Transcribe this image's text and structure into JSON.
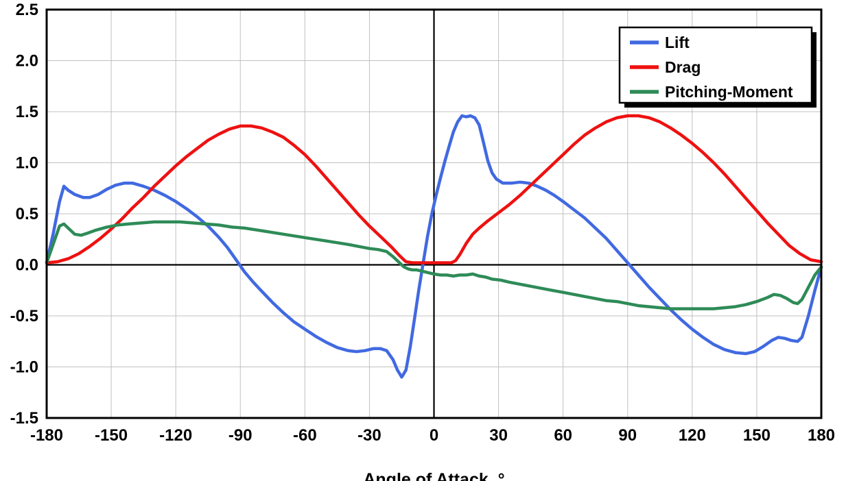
{
  "chart_data": {
    "type": "line",
    "title": "",
    "xlabel": "Angle of Attack, °",
    "ylabel": "",
    "xlim": [
      -180,
      180
    ],
    "ylim": [
      -1.5,
      2.5
    ],
    "xticks": [
      -180,
      -150,
      -120,
      -90,
      -60,
      -30,
      0,
      30,
      60,
      90,
      120,
      150,
      180
    ],
    "yticks": [
      -1.5,
      -1.0,
      -0.5,
      0.0,
      0.5,
      1.0,
      1.5,
      2.0,
      2.5
    ],
    "grid": true,
    "grid_color": "#c0c0c0",
    "axis_color": "#000000",
    "line_width": 4.5,
    "legend_position": "top-right",
    "series": [
      {
        "name": "Lift",
        "color": "#4169e1",
        "points": [
          [
            -180,
            0.02
          ],
          [
            -177,
            0.3
          ],
          [
            -174,
            0.62
          ],
          [
            -172,
            0.77
          ],
          [
            -170,
            0.73
          ],
          [
            -167,
            0.69
          ],
          [
            -163,
            0.66
          ],
          [
            -160,
            0.66
          ],
          [
            -156,
            0.69
          ],
          [
            -152,
            0.74
          ],
          [
            -148,
            0.78
          ],
          [
            -144,
            0.8
          ],
          [
            -140,
            0.8
          ],
          [
            -135,
            0.77
          ],
          [
            -130,
            0.73
          ],
          [
            -125,
            0.68
          ],
          [
            -120,
            0.62
          ],
          [
            -115,
            0.55
          ],
          [
            -110,
            0.47
          ],
          [
            -105,
            0.38
          ],
          [
            -100,
            0.27
          ],
          [
            -96,
            0.17
          ],
          [
            -92,
            0.05
          ],
          [
            -88,
            -0.07
          ],
          [
            -84,
            -0.17
          ],
          [
            -80,
            -0.26
          ],
          [
            -75,
            -0.37
          ],
          [
            -70,
            -0.47
          ],
          [
            -65,
            -0.56
          ],
          [
            -60,
            -0.63
          ],
          [
            -55,
            -0.7
          ],
          [
            -50,
            -0.76
          ],
          [
            -45,
            -0.81
          ],
          [
            -40,
            -0.84
          ],
          [
            -36,
            -0.85
          ],
          [
            -32,
            -0.84
          ],
          [
            -28,
            -0.82
          ],
          [
            -25,
            -0.82
          ],
          [
            -22,
            -0.84
          ],
          [
            -19,
            -0.93
          ],
          [
            -17,
            -1.03
          ],
          [
            -15,
            -1.1
          ],
          [
            -13,
            -1.03
          ],
          [
            -11,
            -0.8
          ],
          [
            -9,
            -0.52
          ],
          [
            -7,
            -0.24
          ],
          [
            -5,
            0.02
          ],
          [
            -3,
            0.28
          ],
          [
            -1,
            0.5
          ],
          [
            1,
            0.68
          ],
          [
            3,
            0.85
          ],
          [
            5,
            1.01
          ],
          [
            7,
            1.16
          ],
          [
            9,
            1.3
          ],
          [
            11,
            1.4
          ],
          [
            13,
            1.46
          ],
          [
            15,
            1.45
          ],
          [
            17,
            1.46
          ],
          [
            19,
            1.44
          ],
          [
            21,
            1.37
          ],
          [
            23,
            1.2
          ],
          [
            25,
            1.02
          ],
          [
            27,
            0.9
          ],
          [
            29,
            0.84
          ],
          [
            32,
            0.8
          ],
          [
            36,
            0.8
          ],
          [
            40,
            0.81
          ],
          [
            44,
            0.8
          ],
          [
            48,
            0.77
          ],
          [
            52,
            0.73
          ],
          [
            56,
            0.68
          ],
          [
            60,
            0.62
          ],
          [
            65,
            0.54
          ],
          [
            70,
            0.46
          ],
          [
            75,
            0.36
          ],
          [
            80,
            0.26
          ],
          [
            85,
            0.14
          ],
          [
            90,
            0.02
          ],
          [
            95,
            -0.1
          ],
          [
            100,
            -0.22
          ],
          [
            105,
            -0.33
          ],
          [
            110,
            -0.44
          ],
          [
            115,
            -0.54
          ],
          [
            120,
            -0.63
          ],
          [
            125,
            -0.71
          ],
          [
            130,
            -0.78
          ],
          [
            135,
            -0.83
          ],
          [
            140,
            -0.86
          ],
          [
            145,
            -0.87
          ],
          [
            149,
            -0.85
          ],
          [
            153,
            -0.8
          ],
          [
            157,
            -0.74
          ],
          [
            160,
            -0.71
          ],
          [
            163,
            -0.72
          ],
          [
            166,
            -0.74
          ],
          [
            169,
            -0.75
          ],
          [
            171,
            -0.71
          ],
          [
            174,
            -0.5
          ],
          [
            177,
            -0.25
          ],
          [
            180,
            -0.02
          ]
        ]
      },
      {
        "name": "Drag",
        "color": "#ee1111",
        "points": [
          [
            -180,
            0.02
          ],
          [
            -175,
            0.03
          ],
          [
            -170,
            0.06
          ],
          [
            -165,
            0.11
          ],
          [
            -160,
            0.18
          ],
          [
            -155,
            0.26
          ],
          [
            -150,
            0.35
          ],
          [
            -145,
            0.45
          ],
          [
            -140,
            0.56
          ],
          [
            -135,
            0.66
          ],
          [
            -130,
            0.77
          ],
          [
            -125,
            0.87
          ],
          [
            -120,
            0.97
          ],
          [
            -115,
            1.06
          ],
          [
            -110,
            1.14
          ],
          [
            -105,
            1.22
          ],
          [
            -100,
            1.28
          ],
          [
            -95,
            1.33
          ],
          [
            -90,
            1.36
          ],
          [
            -85,
            1.36
          ],
          [
            -80,
            1.34
          ],
          [
            -75,
            1.3
          ],
          [
            -70,
            1.25
          ],
          [
            -65,
            1.17
          ],
          [
            -60,
            1.08
          ],
          [
            -55,
            0.97
          ],
          [
            -50,
            0.85
          ],
          [
            -45,
            0.73
          ],
          [
            -40,
            0.61
          ],
          [
            -35,
            0.49
          ],
          [
            -30,
            0.38
          ],
          [
            -25,
            0.28
          ],
          [
            -20,
            0.18
          ],
          [
            -16,
            0.09
          ],
          [
            -13,
            0.03
          ],
          [
            -10,
            0.02
          ],
          [
            -5,
            0.02
          ],
          [
            0,
            0.02
          ],
          [
            5,
            0.02
          ],
          [
            8,
            0.02
          ],
          [
            10,
            0.04
          ],
          [
            12,
            0.1
          ],
          [
            15,
            0.21
          ],
          [
            18,
            0.3
          ],
          [
            21,
            0.36
          ],
          [
            25,
            0.43
          ],
          [
            30,
            0.51
          ],
          [
            35,
            0.59
          ],
          [
            40,
            0.68
          ],
          [
            45,
            0.78
          ],
          [
            50,
            0.88
          ],
          [
            55,
            0.98
          ],
          [
            60,
            1.08
          ],
          [
            65,
            1.18
          ],
          [
            70,
            1.27
          ],
          [
            75,
            1.34
          ],
          [
            80,
            1.4
          ],
          [
            85,
            1.44
          ],
          [
            90,
            1.46
          ],
          [
            95,
            1.46
          ],
          [
            100,
            1.44
          ],
          [
            105,
            1.4
          ],
          [
            110,
            1.34
          ],
          [
            115,
            1.27
          ],
          [
            120,
            1.19
          ],
          [
            125,
            1.1
          ],
          [
            130,
            1.0
          ],
          [
            135,
            0.89
          ],
          [
            140,
            0.77
          ],
          [
            145,
            0.65
          ],
          [
            150,
            0.53
          ],
          [
            155,
            0.41
          ],
          [
            160,
            0.3
          ],
          [
            165,
            0.19
          ],
          [
            170,
            0.11
          ],
          [
            175,
            0.05
          ],
          [
            180,
            0.03
          ]
        ]
      },
      {
        "name": "Pitching-Moment",
        "color": "#2e8b57",
        "points": [
          [
            -180,
            0.02
          ],
          [
            -177,
            0.2
          ],
          [
            -174,
            0.38
          ],
          [
            -172,
            0.4
          ],
          [
            -170,
            0.36
          ],
          [
            -167,
            0.3
          ],
          [
            -164,
            0.29
          ],
          [
            -161,
            0.31
          ],
          [
            -157,
            0.34
          ],
          [
            -152,
            0.37
          ],
          [
            -147,
            0.39
          ],
          [
            -142,
            0.4
          ],
          [
            -136,
            0.41
          ],
          [
            -130,
            0.42
          ],
          [
            -124,
            0.42
          ],
          [
            -118,
            0.42
          ],
          [
            -112,
            0.41
          ],
          [
            -106,
            0.4
          ],
          [
            -100,
            0.39
          ],
          [
            -94,
            0.37
          ],
          [
            -88,
            0.36
          ],
          [
            -82,
            0.34
          ],
          [
            -76,
            0.32
          ],
          [
            -70,
            0.3
          ],
          [
            -64,
            0.28
          ],
          [
            -58,
            0.26
          ],
          [
            -52,
            0.24
          ],
          [
            -46,
            0.22
          ],
          [
            -40,
            0.2
          ],
          [
            -35,
            0.18
          ],
          [
            -30,
            0.16
          ],
          [
            -26,
            0.15
          ],
          [
            -22,
            0.13
          ],
          [
            -19,
            0.08
          ],
          [
            -16,
            0.02
          ],
          [
            -14,
            -0.02
          ],
          [
            -12,
            -0.04
          ],
          [
            -10,
            -0.05
          ],
          [
            -8,
            -0.05
          ],
          [
            -6,
            -0.06
          ],
          [
            -4,
            -0.07
          ],
          [
            -2,
            -0.08
          ],
          [
            0,
            -0.09
          ],
          [
            3,
            -0.1
          ],
          [
            6,
            -0.1
          ],
          [
            9,
            -0.11
          ],
          [
            12,
            -0.1
          ],
          [
            15,
            -0.1
          ],
          [
            18,
            -0.09
          ],
          [
            21,
            -0.11
          ],
          [
            24,
            -0.12
          ],
          [
            27,
            -0.14
          ],
          [
            31,
            -0.15
          ],
          [
            35,
            -0.17
          ],
          [
            40,
            -0.19
          ],
          [
            45,
            -0.21
          ],
          [
            50,
            -0.23
          ],
          [
            55,
            -0.25
          ],
          [
            60,
            -0.27
          ],
          [
            65,
            -0.29
          ],
          [
            70,
            -0.31
          ],
          [
            75,
            -0.33
          ],
          [
            80,
            -0.35
          ],
          [
            85,
            -0.36
          ],
          [
            90,
            -0.38
          ],
          [
            95,
            -0.4
          ],
          [
            100,
            -0.41
          ],
          [
            105,
            -0.42
          ],
          [
            110,
            -0.43
          ],
          [
            115,
            -0.43
          ],
          [
            120,
            -0.43
          ],
          [
            125,
            -0.43
          ],
          [
            130,
            -0.43
          ],
          [
            135,
            -0.42
          ],
          [
            140,
            -0.41
          ],
          [
            145,
            -0.39
          ],
          [
            150,
            -0.36
          ],
          [
            155,
            -0.32
          ],
          [
            158,
            -0.29
          ],
          [
            161,
            -0.3
          ],
          [
            164,
            -0.33
          ],
          [
            167,
            -0.37
          ],
          [
            169,
            -0.38
          ],
          [
            171,
            -0.34
          ],
          [
            174,
            -0.22
          ],
          [
            177,
            -0.1
          ],
          [
            180,
            -0.02
          ]
        ]
      }
    ]
  }
}
